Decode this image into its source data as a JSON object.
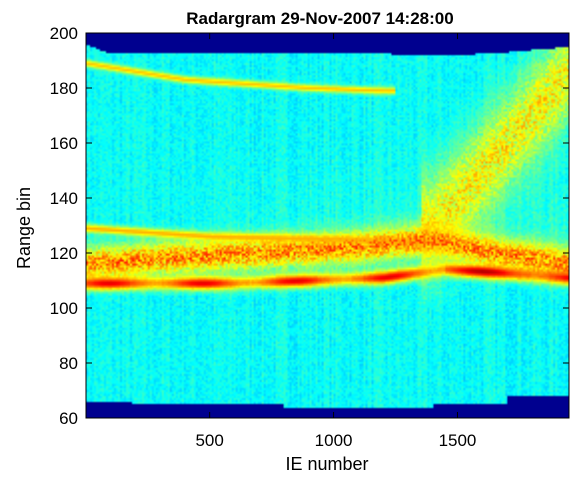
{
  "chart_data": {
    "type": "heatmap",
    "title": "Radargram 29-Nov-2007 14:28:00",
    "xlabel": "IE number",
    "ylabel": "Range bin",
    "xlim": [
      1,
      1950
    ],
    "ylim": [
      60,
      200
    ],
    "x_ticks": [
      500,
      1000,
      1500
    ],
    "y_ticks": [
      60,
      80,
      100,
      120,
      140,
      160,
      180,
      200
    ],
    "colormap": "jet",
    "grid": false,
    "legend": "none",
    "colors": {
      "no_data": "#00008f",
      "background": "#19e6c3",
      "mid": "#8fe850",
      "high": "#f7e818",
      "peak": "#d11a00"
    },
    "no_data_regions": [
      {
        "name": "top",
        "boundary": [
          [
            1,
            196
          ],
          [
            80,
            193
          ],
          [
            700,
            193
          ],
          [
            1100,
            193
          ],
          [
            1300,
            192
          ],
          [
            1500,
            192
          ],
          [
            1700,
            193
          ],
          [
            1950,
            195
          ]
        ]
      },
      {
        "name": "bottom",
        "boundary": [
          [
            1,
            66
          ],
          [
            190,
            66
          ],
          [
            190,
            65
          ],
          [
            800,
            65
          ],
          [
            800,
            64
          ],
          [
            1400,
            64
          ],
          [
            1400,
            65
          ],
          [
            1700,
            65
          ],
          [
            1700,
            68
          ],
          [
            1950,
            68
          ]
        ]
      }
    ],
    "features": [
      {
        "name": "strong echo layer",
        "points": [
          [
            1,
            109
          ],
          [
            200,
            109
          ],
          [
            600,
            109
          ],
          [
            900,
            110
          ],
          [
            1200,
            111
          ],
          [
            1450,
            114
          ],
          [
            1650,
            113
          ],
          [
            1950,
            111
          ]
        ],
        "intensity": 1.0,
        "width": 2.4
      },
      {
        "name": "upper echo band",
        "points": [
          [
            1,
            116
          ],
          [
            300,
            118
          ],
          [
            700,
            120
          ],
          [
            1100,
            122
          ],
          [
            1400,
            125
          ],
          [
            1650,
            120
          ],
          [
            1950,
            116
          ]
        ],
        "intensity": 0.8,
        "width": 6
      },
      {
        "name": "faint upper layer",
        "points": [
          [
            1,
            129
          ],
          [
            500,
            126
          ],
          [
            1000,
            125
          ],
          [
            1400,
            124
          ]
        ],
        "intensity": 0.62,
        "width": 1.5
      },
      {
        "name": "top streak",
        "points": [
          [
            1,
            189
          ],
          [
            400,
            183
          ],
          [
            900,
            180
          ],
          [
            1200,
            179
          ]
        ],
        "intensity": 0.58,
        "width": 1.3
      },
      {
        "name": "diffuse plume",
        "points": [
          [
            1400,
            130
          ],
          [
            1600,
            150
          ],
          [
            1800,
            170
          ],
          [
            1950,
            185
          ]
        ],
        "intensity": 0.55,
        "width": 18
      }
    ]
  }
}
